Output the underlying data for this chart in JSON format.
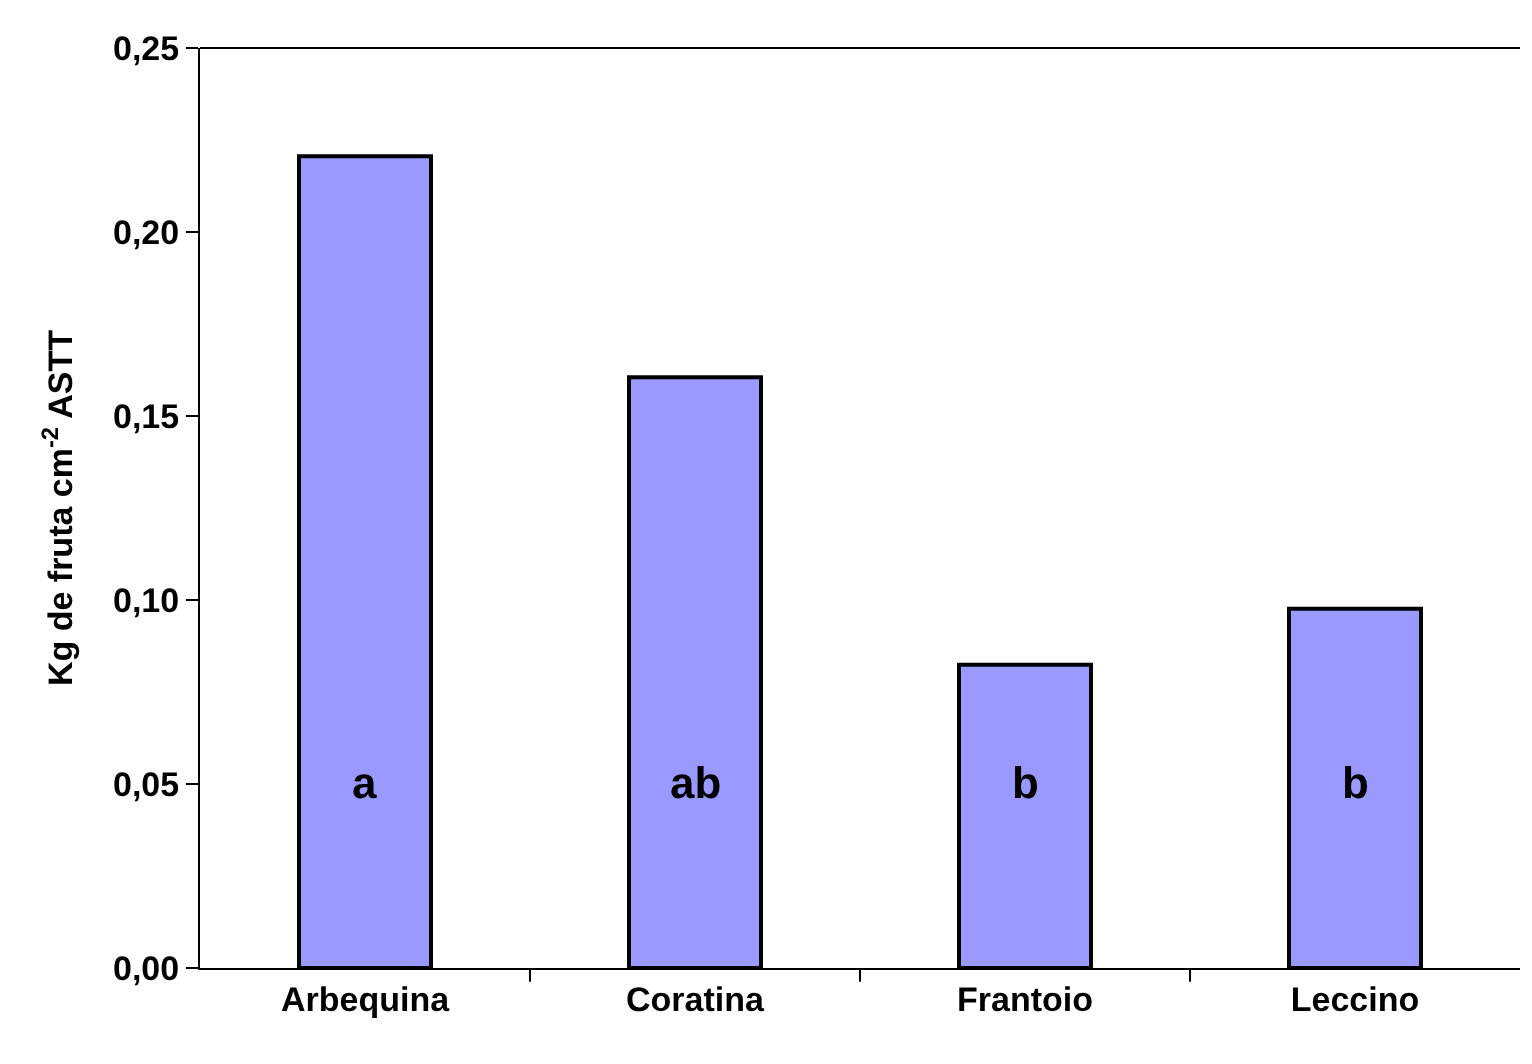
{
  "chart_data": {
    "type": "bar",
    "ylabel": "Kg de fruta cm$^{-2}$ ASTT",
    "categories": [
      "Arbequina",
      "Coratina",
      "Frantoio",
      "Leccino"
    ],
    "values": [
      0.2206,
      0.1605,
      0.0824,
      0.0976
    ],
    "color": "#9999ff",
    "ylim": [
      0,
      0.25
    ],
    "yticks": [
      {
        "value": 0,
        "label": "0,00"
      },
      {
        "value": 0.05,
        "label": "0,05"
      },
      {
        "value": 0.1,
        "label": "0,10"
      },
      {
        "value": 0.15,
        "label": "0,15"
      },
      {
        "value": 0.2,
        "label": "0,20"
      },
      {
        "value": 0.25,
        "label": "0,25"
      }
    ],
    "annotations": [
      "a",
      "ab",
      "b",
      "b"
    ]
  }
}
